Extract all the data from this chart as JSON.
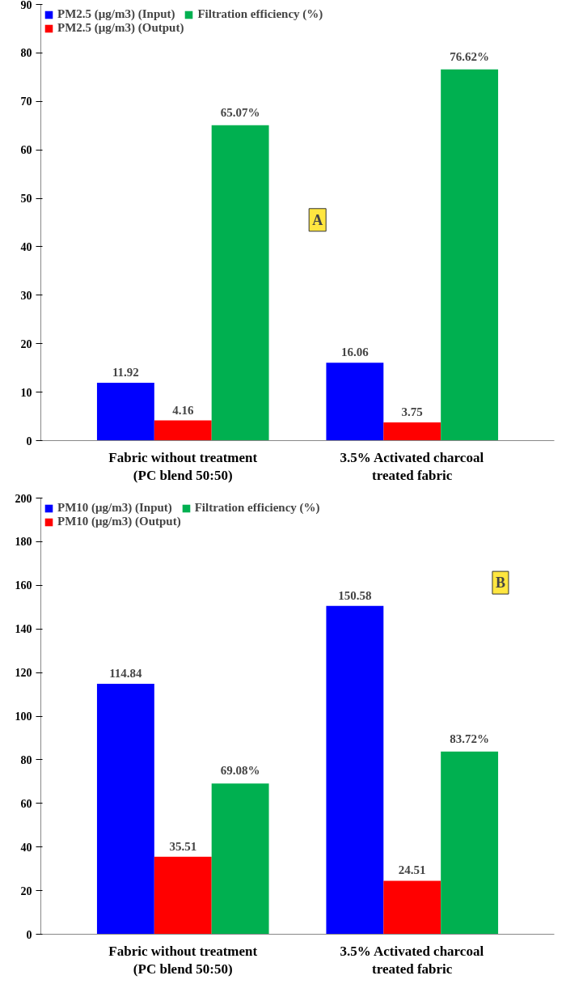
{
  "chart_data": [
    {
      "type": "bar",
      "categories": [
        "Fabric without treatment\n(PC blend 50:50)",
        "3.5% Activated charcoal\ntreated fabric"
      ],
      "series": [
        {
          "name": "PM2.5 (μg/m3) (Input)",
          "color": "#0000ff",
          "values": [
            11.92,
            16.06
          ],
          "value_labels": [
            "11.92",
            "16.06"
          ]
        },
        {
          "name": "PM2.5 (μg/m3) (Output)",
          "color": "#ff0000",
          "values": [
            4.16,
            3.75
          ],
          "value_labels": [
            "4.16",
            "3.75"
          ]
        },
        {
          "name": "Filtration efficiency (%)",
          "color": "#00b050",
          "values": [
            65.07,
            76.62
          ],
          "value_labels": [
            "65.07%",
            "76.62%"
          ]
        }
      ],
      "ylim": [
        0,
        90
      ],
      "yticks": [
        0,
        10,
        20,
        30,
        40,
        50,
        60,
        70,
        80,
        90
      ],
      "grid": false,
      "legend": "top left",
      "annotations": [
        "A"
      ]
    },
    {
      "type": "bar",
      "categories": [
        "Fabric without treatment\n(PC blend 50:50)",
        "3.5% Activated charcoal\ntreated fabric"
      ],
      "series": [
        {
          "name": "PM10 (μg/m3) (Input)",
          "color": "#0000ff",
          "values": [
            114.84,
            150.58
          ],
          "value_labels": [
            "114.84",
            "150.58"
          ]
        },
        {
          "name": "PM10 (μg/m3) (Output)",
          "color": "#ff0000",
          "values": [
            35.51,
            24.51
          ],
          "value_labels": [
            "35.51",
            "24.51"
          ]
        },
        {
          "name": "Filtration efficiency (%)",
          "color": "#00b050",
          "values": [
            69.08,
            83.72
          ],
          "value_labels": [
            "69.08%",
            "83.72%"
          ]
        }
      ],
      "ylim": [
        0,
        200
      ],
      "yticks": [
        0,
        20,
        40,
        60,
        80,
        100,
        120,
        140,
        160,
        180,
        200
      ],
      "grid": false,
      "legend": "top left",
      "annotations": [
        "B"
      ]
    }
  ]
}
